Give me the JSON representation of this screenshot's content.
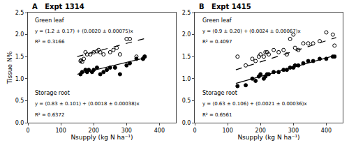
{
  "chart_data": [
    {
      "type": "scatter",
      "title": "A   Expt 1314",
      "xlabel": "Nsupply (kg N ha⁻¹)",
      "ylabel": "Tissue N%",
      "xlim": [
        0,
        450
      ],
      "ylim": [
        0,
        2.5
      ],
      "xticks": [
        0,
        100,
        200,
        300,
        400
      ],
      "yticks": [
        {
          "value": 0,
          "label": "0.0"
        },
        0.5,
        {
          "value": 1,
          "label": "1.0"
        },
        1.5,
        {
          "value": 2,
          "label": "2.0"
        },
        2.5
      ],
      "grid": false,
      "series": [
        {
          "type": "scatter",
          "marker": "open",
          "color": "#000000",
          "x": [
            160,
            162,
            165,
            170,
            175,
            180,
            190,
            200,
            210,
            215,
            220,
            230,
            250,
            260,
            270,
            280,
            300,
            310,
            330,
            350,
            355
          ],
          "values": [
            1.4,
            1.42,
            1.38,
            1.45,
            1.6,
            1.55,
            1.55,
            1.6,
            1.62,
            1.65,
            1.6,
            1.55,
            1.6,
            1.65,
            1.7,
            1.55,
            1.9,
            1.9,
            1.5,
            1.45,
            1.5
          ]
        },
        {
          "type": "scatter",
          "marker": "filled",
          "color": "#000000",
          "x": [
            160,
            165,
            175,
            180,
            185,
            195,
            200,
            210,
            220,
            230,
            240,
            250,
            265,
            280,
            300,
            310,
            330,
            350,
            355
          ],
          "values": [
            1.1,
            1.15,
            1.2,
            1.15,
            1.2,
            1.15,
            1.2,
            1.25,
            1.1,
            1.15,
            1.2,
            1.25,
            1.25,
            1.1,
            1.3,
            1.35,
            1.45,
            1.45,
            1.5
          ]
        },
        {
          "type": "line",
          "line_style": "dashed",
          "color": "#000000",
          "x": [
            150,
            360
          ],
          "values": [
            1.5,
            1.92
          ]
        },
        {
          "type": "line",
          "line_style": "solid",
          "color": "#000000",
          "x": [
            150,
            360
          ],
          "values": [
            1.1,
            1.478
          ]
        }
      ],
      "annotations": [
        "Green leaf",
        "y = (1.2 ± 0.17) + (0.0020 ± 0.00075)x",
        "R² = 0.3166",
        "Storage root",
        "y = (0.83 ± 0.101) + (0.0018 ± 0.00038)x",
        "R² = 0.6372"
      ]
    },
    {
      "type": "scatter",
      "title": "B   Expt 1415",
      "xlabel": "Nsupply (kg N ha⁻¹)",
      "xlim": [
        0,
        450
      ],
      "ylim": [
        0,
        2.5
      ],
      "xticks": [
        0,
        100,
        200,
        300,
        400
      ],
      "yticks": [
        {
          "value": 0,
          "label": "0.0"
        },
        0.5,
        {
          "value": 1,
          "label": "1.0"
        },
        1.5,
        {
          "value": 2,
          "label": "2.0"
        },
        2.5
      ],
      "grid": false,
      "series": [
        {
          "type": "scatter",
          "marker": "open",
          "color": "#000000",
          "x": [
            130,
            155,
            175,
            185,
            195,
            200,
            210,
            215,
            220,
            225,
            240,
            255,
            270,
            280,
            290,
            300,
            305,
            315,
            330,
            345,
            360,
            380,
            400,
            420,
            425
          ],
          "values": [
            1.5,
            1.3,
            1.45,
            1.4,
            1.5,
            1.55,
            1.5,
            1.6,
            1.6,
            1.55,
            1.65,
            1.6,
            1.65,
            1.55,
            1.9,
            2.0,
            1.7,
            1.65,
            1.8,
            1.8,
            1.8,
            1.85,
            2.05,
            2.0,
            1.75
          ]
        },
        {
          "type": "scatter",
          "marker": "filled",
          "color": "#000000",
          "x": [
            130,
            155,
            175,
            185,
            195,
            200,
            210,
            215,
            220,
            225,
            240,
            255,
            270,
            280,
            290,
            300,
            305,
            315,
            330,
            345,
            360,
            380,
            400,
            420,
            425
          ],
          "values": [
            0.83,
            0.85,
            1.0,
            0.95,
            1.05,
            1.1,
            1.0,
            1.05,
            1.1,
            1.1,
            1.15,
            1.15,
            1.2,
            1.2,
            1.25,
            1.25,
            1.3,
            1.3,
            1.35,
            1.4,
            1.4,
            1.45,
            1.45,
            1.5,
            1.5
          ]
        },
        {
          "type": "line",
          "line_style": "dashed",
          "color": "#000000",
          "x": [
            125,
            430
          ],
          "values": [
            1.2,
            1.932
          ]
        },
        {
          "type": "line",
          "line_style": "solid",
          "color": "#000000",
          "x": [
            125,
            430
          ],
          "values": [
            0.8925,
            1.533
          ]
        }
      ],
      "annotations": [
        "Green leaf",
        "y = (0.9 ± 0.20) + (0.0024 ± 0.00067)x",
        "R² = 0.4097",
        "Storage root",
        "y = (0.63 ± 0.106) + (0.0021 ± 0.00036)x",
        "R² = 0.6561"
      ]
    }
  ]
}
